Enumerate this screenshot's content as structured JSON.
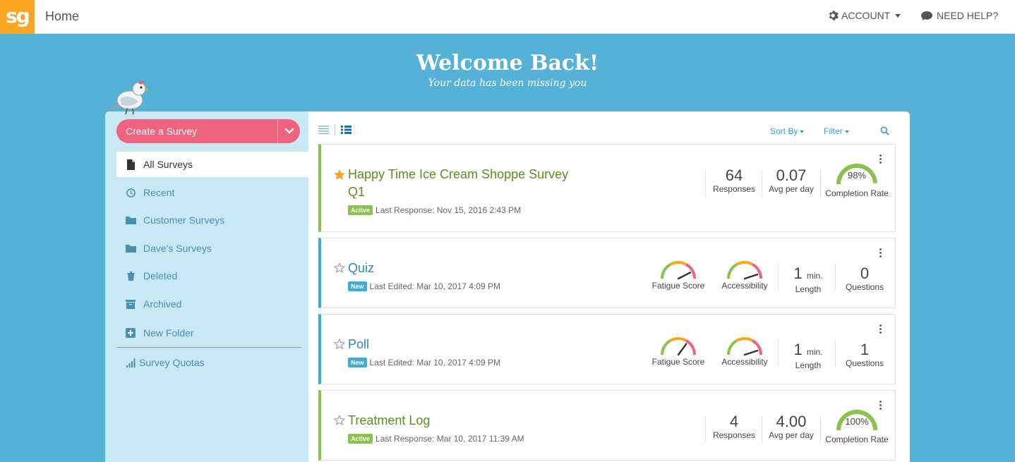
{
  "topbar": {
    "logo": "sg",
    "title": "Home",
    "account_label": "ACCOUNT",
    "help_label": "NEED HELP?"
  },
  "welcome": {
    "title": "Welcome Back!",
    "subtitle": "Your data has been missing you"
  },
  "sidebar": {
    "create_label": "Create a Survey",
    "items": [
      {
        "label": "All Surveys",
        "icon": "document-icon"
      },
      {
        "label": "Recent",
        "icon": "clock-icon"
      },
      {
        "label": "Customer Surveys",
        "icon": "folder-icon"
      },
      {
        "label": "Dave's Surveys",
        "icon": "folder-icon"
      },
      {
        "label": "Deleted",
        "icon": "trash-icon"
      },
      {
        "label": "Archived",
        "icon": "archive-icon"
      },
      {
        "label": "New Folder",
        "icon": "plus-square-icon"
      }
    ],
    "quotas_label": "Survey Quotas"
  },
  "toolbar": {
    "sort_label": "Sort By",
    "filter_label": "Filter"
  },
  "surveys": [
    {
      "title_line1": "Happy Time Ice Cream Shoppe Survey",
      "title_line2": "Q1",
      "starred": true,
      "badge": "Active",
      "meta": "Last Response: Nov 15, 2016 2:43 PM",
      "responses": "64",
      "responses_label": "Responses",
      "avg": "0.07",
      "avg_label": "Avg per day",
      "completion": "98%",
      "completion_value": 0.98,
      "completion_label": "Completion Rate"
    },
    {
      "title": "Quiz",
      "starred": false,
      "badge": "New",
      "meta": "Last Edited: Mar 10, 2017 4:09 PM",
      "fatigue_label": "Fatigue Score",
      "fatigue_value": 0.85,
      "accessibility_label": "Accessibility",
      "accessibility_value": 0.9,
      "length": "1",
      "length_unit": "min.",
      "length_label": "Length",
      "questions": "0",
      "questions_label": "Questions"
    },
    {
      "title": "Poll",
      "starred": false,
      "badge": "New",
      "meta": "Last Edited: Mar 10, 2017 4:09 PM",
      "fatigue_label": "Fatigue Score",
      "fatigue_value": 0.7,
      "accessibility_label": "Accessibility",
      "accessibility_value": 0.9,
      "length": "1",
      "length_unit": "min.",
      "length_label": "Length",
      "questions": "1",
      "questions_label": "Questions"
    },
    {
      "title": "Treatment Log",
      "starred": false,
      "badge": "Active",
      "meta": "Last Response: Mar 10, 2017 11:39 AM",
      "responses": "4",
      "responses_label": "Responses",
      "avg": "4.00",
      "avg_label": "Avg per day",
      "completion": "100%",
      "completion_value": 1.0,
      "completion_label": "Completion Rate"
    }
  ]
}
